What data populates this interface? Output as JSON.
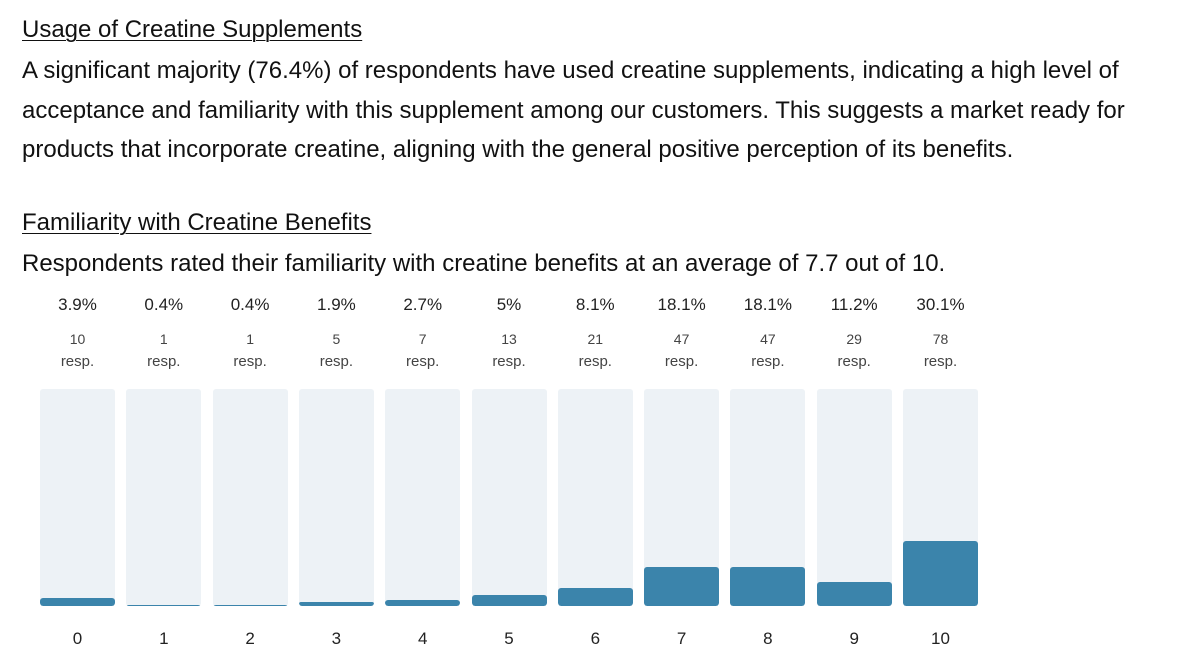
{
  "section1": {
    "title": "Usage of Creatine Supplements",
    "body": "A significant majority (76.4%) of respondents have used creatine supplements, indicating a high level of acceptance and familiarity with this supplement among our customers. This suggests a market ready for products that incorporate creatine, aligning with the general positive perception of its benefits."
  },
  "section2": {
    "title": "Familiarity with Creatine Benefits",
    "body": "Respondents rated their familiarity with creatine benefits at an average of 7.7 out of 10."
  },
  "chart_data": {
    "type": "bar",
    "title": "Familiarity with Creatine Benefits",
    "categories": [
      "0",
      "1",
      "2",
      "3",
      "4",
      "5",
      "6",
      "7",
      "8",
      "9",
      "10"
    ],
    "percent_labels": [
      "3.9%",
      "0.4%",
      "0.4%",
      "1.9%",
      "2.7%",
      "5%",
      "8.1%",
      "18.1%",
      "18.1%",
      "11.2%",
      "30.1%"
    ],
    "values": [
      3.9,
      0.4,
      0.4,
      1.9,
      2.7,
      5,
      8.1,
      18.1,
      18.1,
      11.2,
      30.1
    ],
    "counts": [
      "10",
      "1",
      "1",
      "5",
      "7",
      "13",
      "21",
      "47",
      "47",
      "29",
      "78"
    ],
    "count_unit": "resp.",
    "ylim": [
      0,
      100
    ],
    "colors": {
      "fill": "#3b84ab",
      "track": "#edf2f6"
    }
  }
}
